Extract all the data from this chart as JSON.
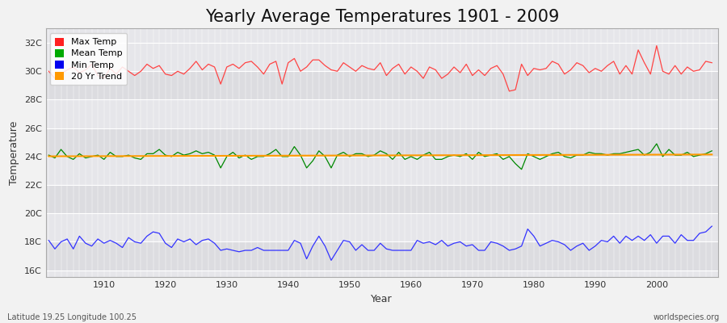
{
  "title": "Yearly Average Temperatures 1901 - 2009",
  "xlabel": "Year",
  "ylabel": "Temperature",
  "x_start": 1901,
  "x_end": 2009,
  "yticks": [
    16,
    18,
    20,
    22,
    24,
    26,
    28,
    30,
    32
  ],
  "ytick_labels": [
    "16C",
    "18C",
    "20C",
    "22C",
    "24C",
    "26C",
    "28C",
    "30C",
    "32C"
  ],
  "ylim": [
    15.5,
    33.0
  ],
  "xlim": [
    1900.5,
    2010
  ],
  "figure_bg": "#f0f0f0",
  "plot_bg_light": "#e8e8ec",
  "plot_bg_dark": "#dcdce0",
  "grid_color": "#ffffff",
  "title_fontsize": 15,
  "legend_labels": [
    "Max Temp",
    "Mean Temp",
    "Min Temp",
    "20 Yr Trend"
  ],
  "legend_colors": [
    "#ff2020",
    "#00aa00",
    "#0000ee",
    "#ff9900"
  ],
  "max_temp_color": "#ff4444",
  "mean_temp_color": "#008800",
  "min_temp_color": "#3333ff",
  "trend_color": "#ff9900",
  "footer_left": "Latitude 19.25 Longitude 100.25",
  "footer_right": "worldspecies.org",
  "max_temp": [
    30.0,
    29.5,
    29.8,
    30.1,
    30.3,
    29.9,
    30.1,
    30.5,
    29.7,
    29.5,
    30.2,
    29.8,
    30.3,
    30.0,
    29.7,
    30.0,
    30.5,
    30.2,
    30.4,
    29.8,
    29.7,
    30.0,
    29.8,
    30.2,
    30.7,
    30.1,
    30.5,
    30.3,
    29.1,
    30.3,
    30.5,
    30.2,
    30.6,
    30.7,
    30.3,
    29.8,
    30.5,
    30.7,
    29.1,
    30.6,
    30.9,
    30.0,
    30.3,
    30.8,
    30.8,
    30.4,
    30.1,
    30.0,
    30.6,
    30.3,
    30.0,
    30.4,
    30.2,
    30.1,
    30.6,
    29.7,
    30.2,
    30.5,
    29.8,
    30.3,
    30.0,
    29.5,
    30.3,
    30.1,
    29.5,
    29.8,
    30.3,
    29.9,
    30.5,
    29.7,
    30.1,
    29.7,
    30.2,
    30.4,
    29.8,
    28.6,
    28.7,
    30.5,
    29.7,
    30.2,
    30.1,
    30.2,
    30.7,
    30.5,
    29.8,
    30.1,
    30.6,
    30.4,
    29.9,
    30.2,
    30.0,
    30.4,
    30.7,
    29.8,
    30.4,
    29.8,
    31.5,
    30.6,
    29.8,
    31.8,
    30.0,
    29.8,
    30.4,
    29.8,
    30.3,
    30.0,
    30.1,
    30.7,
    30.6
  ],
  "mean_temp": [
    24.1,
    23.9,
    24.5,
    24.0,
    23.8,
    24.2,
    23.9,
    24.0,
    24.1,
    23.8,
    24.3,
    24.0,
    24.0,
    24.1,
    23.9,
    23.8,
    24.2,
    24.2,
    24.5,
    24.1,
    24.0,
    24.3,
    24.1,
    24.2,
    24.4,
    24.2,
    24.3,
    24.1,
    23.2,
    24.0,
    24.3,
    23.9,
    24.1,
    23.8,
    24.0,
    24.0,
    24.2,
    24.5,
    24.0,
    24.0,
    24.7,
    24.1,
    23.2,
    23.7,
    24.4,
    24.0,
    23.2,
    24.1,
    24.3,
    24.0,
    24.2,
    24.2,
    24.0,
    24.1,
    24.4,
    24.2,
    23.8,
    24.3,
    23.8,
    24.0,
    23.8,
    24.1,
    24.3,
    23.8,
    23.8,
    24.0,
    24.1,
    24.0,
    24.2,
    23.8,
    24.3,
    24.0,
    24.1,
    24.2,
    23.8,
    24.0,
    23.5,
    23.1,
    24.2,
    24.0,
    23.8,
    24.0,
    24.2,
    24.3,
    24.0,
    23.9,
    24.1,
    24.1,
    24.3,
    24.2,
    24.2,
    24.1,
    24.2,
    24.2,
    24.3,
    24.4,
    24.5,
    24.1,
    24.3,
    24.9,
    24.0,
    24.5,
    24.1,
    24.1,
    24.3,
    24.0,
    24.1,
    24.2,
    24.4
  ],
  "min_temp": [
    18.1,
    17.5,
    18.0,
    18.2,
    17.5,
    18.4,
    17.9,
    17.7,
    18.2,
    17.9,
    18.1,
    17.9,
    17.6,
    18.3,
    18.0,
    17.9,
    18.4,
    18.7,
    18.6,
    17.9,
    17.6,
    18.2,
    18.0,
    18.2,
    17.8,
    18.1,
    18.2,
    17.9,
    17.4,
    17.5,
    17.4,
    17.3,
    17.4,
    17.4,
    17.6,
    17.4,
    17.4,
    17.4,
    17.4,
    17.4,
    18.1,
    17.9,
    16.8,
    17.7,
    18.4,
    17.7,
    16.7,
    17.4,
    18.1,
    18.0,
    17.4,
    17.8,
    17.4,
    17.4,
    17.9,
    17.5,
    17.4,
    17.4,
    17.4,
    17.4,
    18.1,
    17.9,
    18.0,
    17.8,
    18.1,
    17.7,
    17.9,
    18.0,
    17.7,
    17.8,
    17.4,
    17.4,
    18.0,
    17.9,
    17.7,
    17.4,
    17.5,
    17.7,
    18.9,
    18.4,
    17.7,
    17.9,
    18.1,
    18.0,
    17.8,
    17.4,
    17.7,
    17.9,
    17.4,
    17.7,
    18.1,
    18.0,
    18.4,
    17.9,
    18.4,
    18.1,
    18.4,
    18.1,
    18.5,
    17.9,
    18.4,
    18.4,
    17.9,
    18.5,
    18.1,
    18.1,
    18.6,
    18.7,
    19.1
  ]
}
